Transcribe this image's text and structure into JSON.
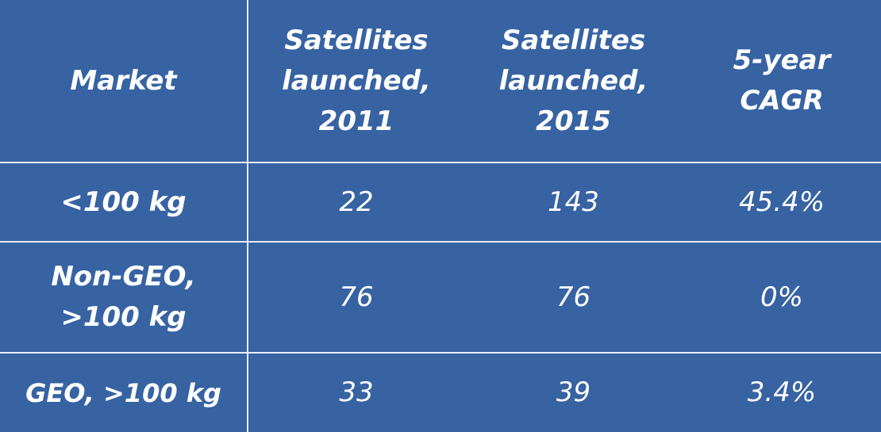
{
  "table": {
    "header": [
      "Market",
      "Satellites launched, 2011",
      "Satellites launched, 2015",
      "5-year CAGR"
    ],
    "rows": [
      [
        "<100 kg",
        "22",
        "143",
        "45.4%"
      ],
      [
        "Non-GEO, >100 kg",
        "76",
        "76",
        "0%"
      ],
      [
        "GEO, >100 kg",
        "33",
        "39",
        "3.4%"
      ]
    ]
  }
}
